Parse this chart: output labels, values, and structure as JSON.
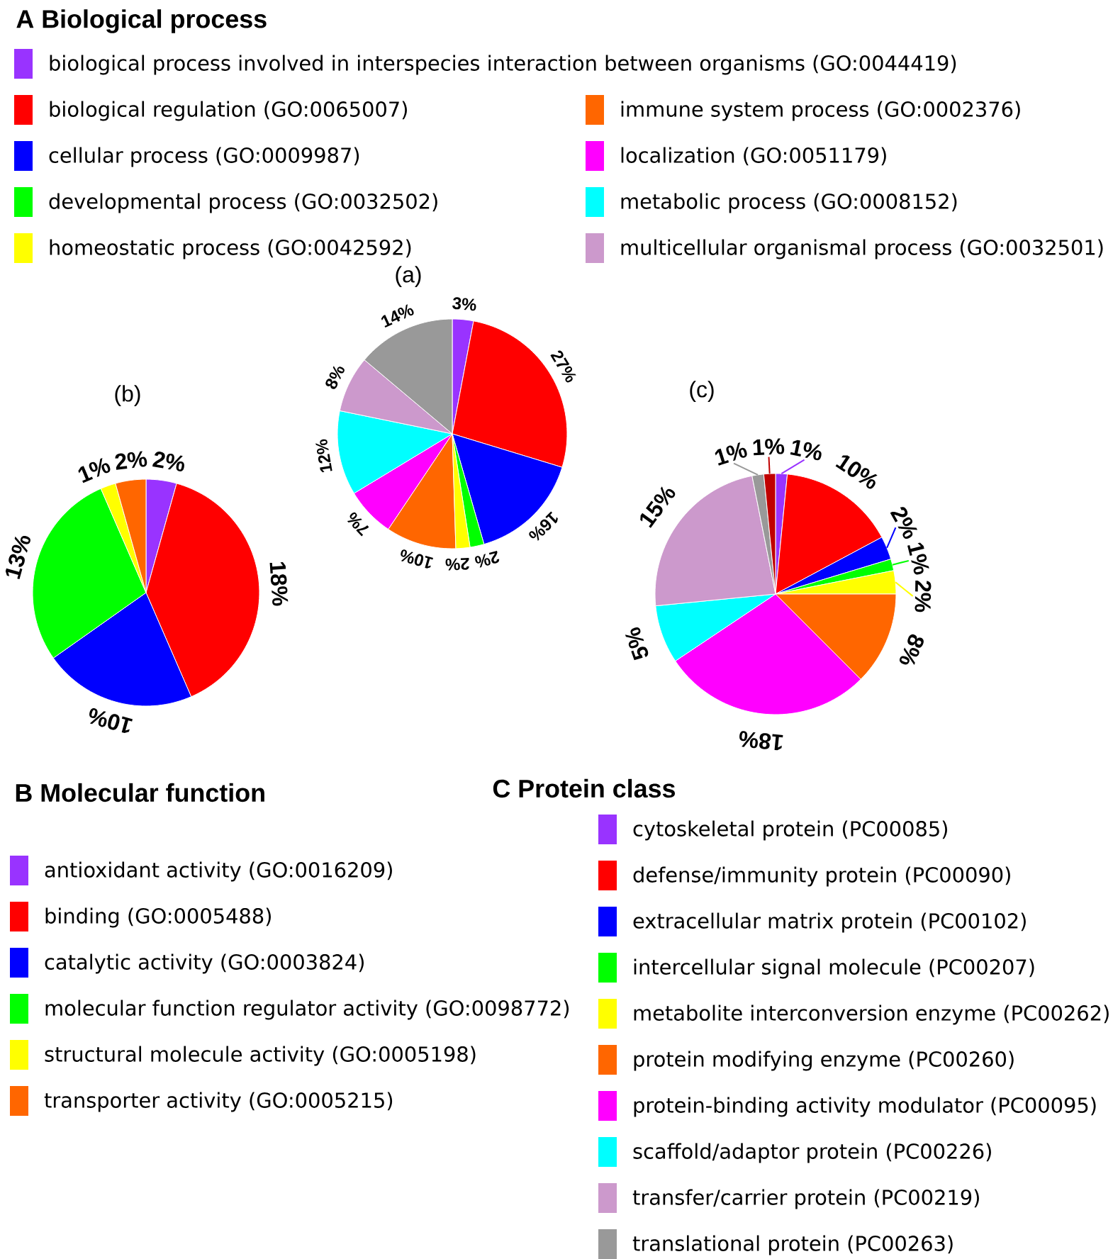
{
  "chart_data": [
    {
      "type": "pie",
      "title": "(a)",
      "legend_title": "A Biological process",
      "categories": [
        "biological process involved in interspecies interaction between organisms (GO:0044419)",
        "biological regulation (GO:0065007)",
        "cellular process (GO:0009987)",
        "developmental process (GO:0032502)",
        "homeostatic process (GO:0042592)",
        "immune system process (GO:0002376)",
        "localization (GO:0051179)",
        "metabolic process (GO:0008152)",
        "multicellular organismal process (GO:0032501)",
        null
      ],
      "values": [
        3,
        27,
        16,
        2,
        2,
        10,
        7,
        12,
        8,
        14
      ],
      "colors": [
        "#9933ff",
        "#ff0000",
        "#0000ff",
        "#00ff00",
        "#ffff00",
        "#ff6600",
        "#ff00ff",
        "#00ffff",
        "#cc99cc",
        "#999999"
      ],
      "value_labels": [
        "3%",
        "27%",
        "16%",
        "2%",
        "2%",
        "10%",
        "7%",
        "12%",
        "8%",
        "14%"
      ],
      "legend": "top"
    },
    {
      "type": "pie",
      "title": "(b)",
      "legend_title": "B Molecular function",
      "categories": [
        "antioxidant activity (GO:0016209)",
        "binding (GO:0005488)",
        "catalytic activity (GO:0003824)",
        "molecular function regulator activity (GO:0098772)",
        "structural molecule activity (GO:0005198)",
        "transporter activity (GO:0005215)"
      ],
      "values": [
        2,
        18,
        10,
        13,
        1,
        2
      ],
      "colors": [
        "#9933ff",
        "#ff0000",
        "#0000ff",
        "#00ff00",
        "#ffff00",
        "#ff6600"
      ],
      "value_labels": [
        "2%",
        "18%",
        "10%",
        "13%",
        "1%",
        "2%"
      ],
      "legend": "bottom"
    },
    {
      "type": "pie",
      "title": "(c)",
      "legend_title": "C Protein class",
      "categories": [
        "cytoskeletal protein (PC00085)",
        "defense/immunity protein (PC00090)",
        "extracellular matrix protein (PC00102)",
        "intercellular signal molecule (PC00207)",
        "metabolite interconversion enzyme (PC00262)",
        "protein modifying enzyme (PC00260)",
        "protein-binding activity modulator (PC00095)",
        "scaffold/adaptor protein (PC00226)",
        "transfer/carrier protein (PC00219)",
        "translational protein (PC00263)",
        null
      ],
      "values": [
        1,
        10,
        2,
        1,
        2,
        8,
        18,
        5,
        15,
        1,
        1
      ],
      "colors": [
        "#9933ff",
        "#ff0000",
        "#0000ff",
        "#00ff00",
        "#ffff00",
        "#ff6600",
        "#ff00ff",
        "#00ffff",
        "#cc99cc",
        "#999999",
        "#c00000"
      ],
      "value_labels": [
        "1%",
        "10%",
        "2%",
        "1%",
        "2%",
        "8%",
        "18%",
        "5%",
        "15%",
        "1%",
        "1%"
      ],
      "legend": "bottom"
    }
  ]
}
